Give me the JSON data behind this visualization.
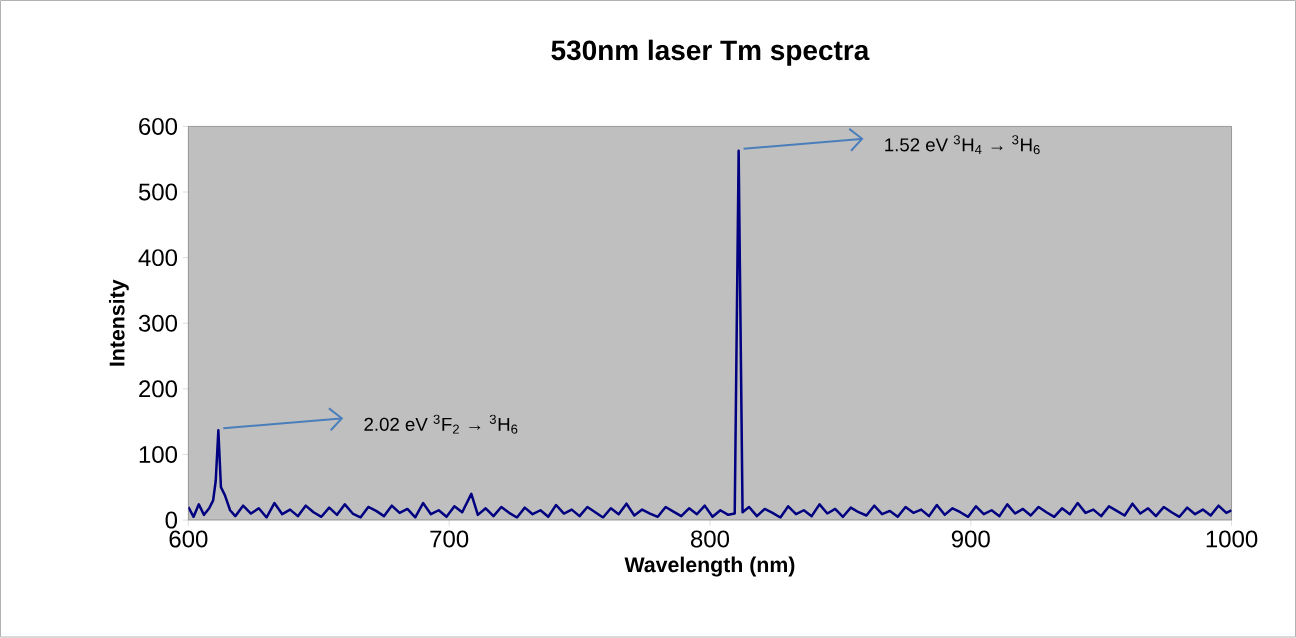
{
  "chart_data": {
    "type": "line",
    "title": "530nm laser Tm spectra",
    "xlabel": "Wavelength (nm)",
    "ylabel": "Intensity",
    "xlim": [
      600,
      1000
    ],
    "xticks": [
      600,
      700,
      800,
      900,
      1000
    ],
    "ylim": [
      0,
      600
    ],
    "yticks": [
      0,
      100,
      200,
      300,
      400,
      500,
      600
    ],
    "grid": false,
    "marker": "none",
    "line_style": "solid",
    "annotations": [
      {
        "text": "2.02 eV $^{3}$F$_{2}$ → $^{3}$H$_{6}$",
        "x": 611.5,
        "y": 137
      },
      {
        "text": "1.52 eV  $^{3}$H$_{4}$ → $^{3}$H$_{6}$",
        "x": 811,
        "y": 563
      }
    ],
    "series": [
      {
        "color": "#000080",
        "x": [
          600,
          602,
          604,
          606,
          608,
          609.5,
          610.5,
          611.5,
          612.5,
          614,
          616,
          618,
          621,
          624,
          627,
          630,
          633,
          636,
          639,
          642,
          645,
          648,
          651,
          654,
          657,
          660,
          663,
          666,
          669,
          672,
          675,
          678,
          681,
          684,
          687,
          690,
          693,
          696,
          699,
          702,
          705,
          708.5,
          711,
          714,
          717,
          720,
          723,
          726,
          729,
          732,
          735,
          738,
          741,
          744,
          747,
          750,
          753,
          756,
          759,
          762,
          765,
          768,
          771,
          774,
          777,
          780,
          783,
          786,
          789,
          792,
          795,
          798,
          801,
          804,
          807,
          809.5,
          811,
          812.5,
          815,
          818,
          821,
          824,
          827,
          830,
          833,
          836,
          839,
          842,
          845,
          848,
          851,
          854,
          857,
          860,
          863,
          866,
          869,
          872,
          875,
          878,
          881,
          884,
          887,
          890,
          893,
          896,
          899,
          902,
          905,
          908,
          911,
          914,
          917,
          920,
          923,
          926,
          929,
          932,
          935,
          938,
          941,
          944,
          947,
          950,
          953,
          956,
          959,
          962,
          965,
          968,
          971,
          974,
          977,
          980,
          983,
          986,
          989,
          992,
          995,
          998,
          1000
        ],
        "values": [
          20,
          5,
          24,
          8,
          18,
          30,
          60,
          137,
          50,
          38,
          15,
          6,
          22,
          10,
          18,
          4,
          26,
          9,
          16,
          6,
          22,
          12,
          5,
          19,
          8,
          24,
          10,
          4,
          20,
          14,
          6,
          22,
          11,
          17,
          4,
          26,
          9,
          15,
          5,
          21,
          12,
          40,
          8,
          18,
          6,
          20,
          11,
          4,
          19,
          9,
          15,
          5,
          23,
          10,
          16,
          6,
          20,
          12,
          4,
          18,
          9,
          25,
          7,
          16,
          10,
          5,
          20,
          13,
          6,
          18,
          9,
          22,
          5,
          15,
          8,
          10,
          563,
          12,
          20,
          6,
          17,
          11,
          4,
          21,
          9,
          15,
          6,
          24,
          10,
          17,
          5,
          19,
          12,
          7,
          22,
          9,
          14,
          5,
          20,
          11,
          16,
          6,
          23,
          8,
          18,
          12,
          5,
          21,
          9,
          15,
          6,
          24,
          10,
          17,
          7,
          20,
          12,
          5,
          18,
          9,
          26,
          11,
          16,
          6,
          21,
          14,
          7,
          25,
          10,
          18,
          6,
          20,
          12,
          5,
          19,
          9,
          16,
          7,
          22,
          11,
          15
        ]
      }
    ]
  }
}
